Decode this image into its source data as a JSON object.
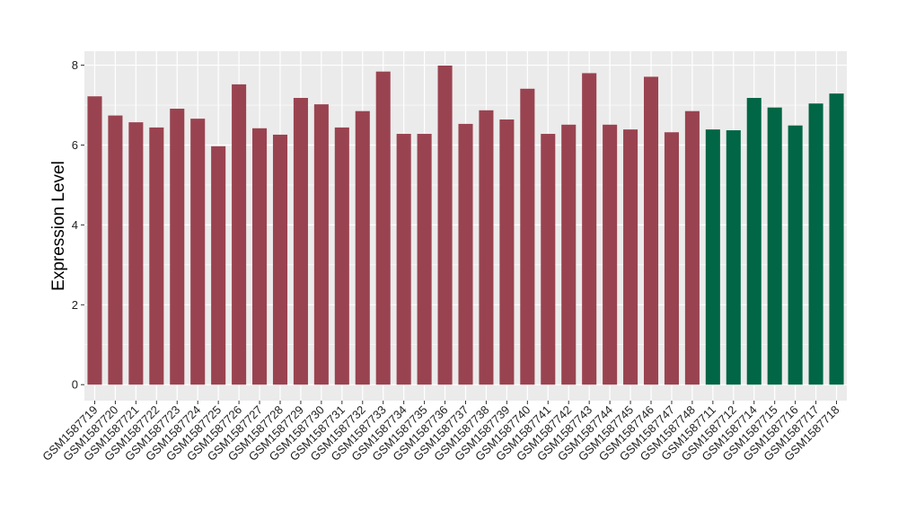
{
  "chart_data": {
    "type": "bar",
    "title": "",
    "xlabel": "",
    "ylabel": "Expression Level",
    "ylim": [
      0,
      8.2
    ],
    "yticks": [
      0,
      2,
      4,
      6,
      8
    ],
    "grid": true,
    "legend": "none",
    "categories": [
      "GSM1587719",
      "GSM1587720",
      "GSM1587721",
      "GSM1587722",
      "GSM1587723",
      "GSM1587724",
      "GSM1587725",
      "GSM1587726",
      "GSM1587727",
      "GSM1587728",
      "GSM1587729",
      "GSM1587730",
      "GSM1587731",
      "GSM1587732",
      "GSM1587733",
      "GSM1587734",
      "GSM1587735",
      "GSM1587736",
      "GSM1587737",
      "GSM1587738",
      "GSM1587739",
      "GSM1587740",
      "GSM1587741",
      "GSM1587742",
      "GSM1587743",
      "GSM1587744",
      "GSM1587745",
      "GSM1587746",
      "GSM1587747",
      "GSM1587748",
      "GSM1587711",
      "GSM1587712",
      "GSM1587714",
      "GSM1587715",
      "GSM1587716",
      "GSM1587717",
      "GSM1587718"
    ],
    "values": [
      7.22,
      6.74,
      6.57,
      6.44,
      6.91,
      6.66,
      5.97,
      7.52,
      6.42,
      6.26,
      7.18,
      7.02,
      6.44,
      6.85,
      7.84,
      6.28,
      6.28,
      7.99,
      6.53,
      6.87,
      6.64,
      7.41,
      6.28,
      6.51,
      7.8,
      6.51,
      6.39,
      7.71,
      6.32,
      6.85,
      6.39,
      6.37,
      7.18,
      6.94,
      6.49,
      7.04,
      7.29
    ],
    "bar_colors": [
      "#9a4350",
      "#9a4350",
      "#9a4350",
      "#9a4350",
      "#9a4350",
      "#9a4350",
      "#9a4350",
      "#9a4350",
      "#9a4350",
      "#9a4350",
      "#9a4350",
      "#9a4350",
      "#9a4350",
      "#9a4350",
      "#9a4350",
      "#9a4350",
      "#9a4350",
      "#9a4350",
      "#9a4350",
      "#9a4350",
      "#9a4350",
      "#9a4350",
      "#9a4350",
      "#9a4350",
      "#9a4350",
      "#9a4350",
      "#9a4350",
      "#9a4350",
      "#9a4350",
      "#9a4350",
      "#006645",
      "#006645",
      "#006645",
      "#006645",
      "#006645",
      "#006645",
      "#006645"
    ],
    "colors": {
      "panel_background": "#ebebeb",
      "gridline": "#ffffff",
      "group_a": "#9a4350",
      "group_b": "#006645"
    }
  }
}
